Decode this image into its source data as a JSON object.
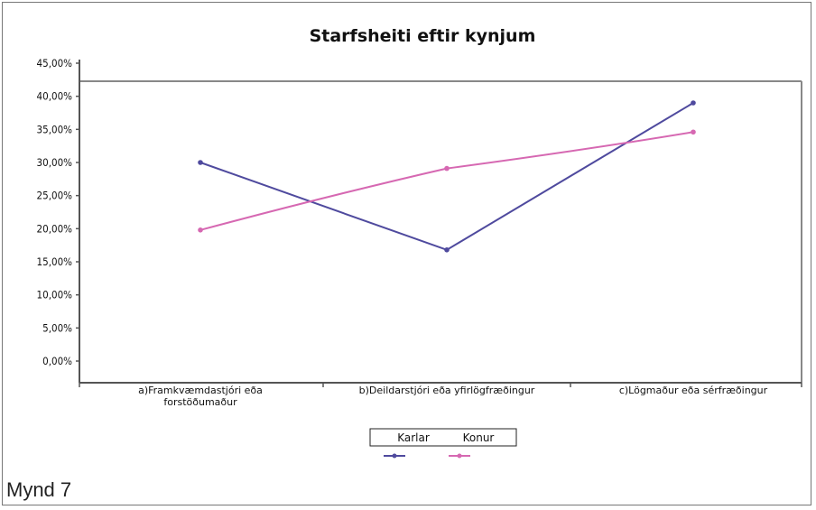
{
  "caption": "Mynd 7",
  "colors": {
    "karlar": "#4f4a9e",
    "konur": "#d668b2",
    "axis": "#555555"
  },
  "chart_data": {
    "type": "line",
    "title": "Starfsheiti eftir kynjum",
    "xlabel": "",
    "ylabel": "",
    "ylim": [
      0,
      45
    ],
    "yticks": [
      "0,00%",
      "5,00%",
      "10,00%",
      "15,00%",
      "20,00%",
      "25,00%",
      "30,00%",
      "35,00%",
      "40,00%",
      "45,00%"
    ],
    "categories": [
      [
        "a)Framkvæmdastjóri eða",
        "forstöðumaður"
      ],
      [
        "b)Deildarstjóri eða yfirlögfræðingur"
      ],
      [
        "c)Lögmaður eða sérfræðingur"
      ]
    ],
    "series": [
      {
        "name": "Karlar",
        "values": [
          30.0,
          16.8,
          39.0
        ],
        "color": "#4f4a9e"
      },
      {
        "name": "Konur",
        "values": [
          19.8,
          29.1,
          34.6
        ],
        "color": "#d668b2"
      }
    ],
    "legend_position": "bottom-center",
    "grid": false
  }
}
